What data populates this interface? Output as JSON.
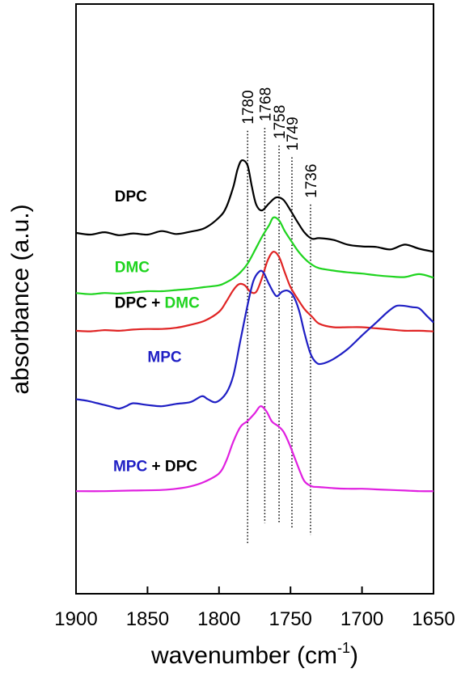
{
  "chart_data": {
    "type": "line",
    "title": "",
    "xlabel": "wavenumber (cm",
    "xlabel_sup": "-1",
    "xlabel_close": ")",
    "ylabel": "absorbance (a.u.)",
    "x_reversed": true,
    "xlim": [
      1900,
      1650
    ],
    "xticks": [
      1900,
      1850,
      1800,
      1750,
      1700,
      1650
    ],
    "xtick_labels": [
      "1900",
      "1850",
      "1800",
      "1750",
      "1700",
      "1650"
    ],
    "yticks": false,
    "grid": false,
    "reference_lines": [
      {
        "x": 1780,
        "label": "1780",
        "y_top": 0.785,
        "y_bottom": 0.085
      },
      {
        "x": 1768,
        "label": "1768",
        "y_top": 0.79,
        "y_bottom": 0.12
      },
      {
        "x": 1758,
        "label": "1758",
        "y_top": 0.76,
        "y_bottom": 0.12
      },
      {
        "x": 1749,
        "label": "1749",
        "y_top": 0.74,
        "y_bottom": 0.11
      },
      {
        "x": 1736,
        "label": "1736",
        "y_top": 0.66,
        "y_bottom": 0.1
      }
    ],
    "series": [
      {
        "name": "DPC",
        "label_parts": [
          {
            "text": "DPC",
            "color": "#000000"
          }
        ],
        "color": "#000000",
        "label_pos": [
          1873,
          0.665
        ],
        "x": [
          1900,
          1890,
          1880,
          1870,
          1860,
          1850,
          1840,
          1830,
          1820,
          1810,
          1800,
          1795,
          1790,
          1787,
          1784,
          1780,
          1777,
          1774,
          1770,
          1765,
          1760,
          1755,
          1750,
          1745,
          1740,
          1735,
          1730,
          1720,
          1710,
          1700,
          1690,
          1680,
          1670,
          1660,
          1650
        ],
        "y": [
          0.612,
          0.609,
          0.613,
          0.608,
          0.611,
          0.609,
          0.615,
          0.61,
          0.614,
          0.62,
          0.638,
          0.655,
          0.69,
          0.72,
          0.735,
          0.726,
          0.69,
          0.66,
          0.65,
          0.662,
          0.672,
          0.668,
          0.65,
          0.63,
          0.612,
          0.602,
          0.603,
          0.6,
          0.592,
          0.589,
          0.588,
          0.584,
          0.592,
          0.585,
          0.58
        ]
      },
      {
        "name": "DMC",
        "label_parts": [
          {
            "text": "DMC",
            "color": "#1fd41f"
          }
        ],
        "color": "#1fd41f",
        "label_pos": [
          1873,
          0.545
        ],
        "x": [
          1900,
          1890,
          1880,
          1870,
          1860,
          1850,
          1840,
          1830,
          1820,
          1810,
          1800,
          1795,
          1790,
          1785,
          1780,
          1775,
          1770,
          1765,
          1762,
          1758,
          1754,
          1750,
          1745,
          1740,
          1735,
          1730,
          1720,
          1710,
          1700,
          1690,
          1680,
          1670,
          1660,
          1650
        ],
        "y": [
          0.51,
          0.508,
          0.51,
          0.509,
          0.511,
          0.513,
          0.513,
          0.515,
          0.517,
          0.52,
          0.523,
          0.528,
          0.535,
          0.545,
          0.56,
          0.582,
          0.605,
          0.625,
          0.638,
          0.633,
          0.615,
          0.6,
          0.582,
          0.568,
          0.558,
          0.552,
          0.548,
          0.545,
          0.543,
          0.54,
          0.538,
          0.537,
          0.542,
          0.536
        ]
      },
      {
        "name": "DPC + DMC",
        "label_parts": [
          {
            "text": "DPC",
            "color": "#000000"
          },
          {
            "text": " + ",
            "color": "#000000"
          },
          {
            "text": "DMC",
            "color": "#1fd41f"
          }
        ],
        "color": "#e02424",
        "label_pos": [
          1873,
          0.485
        ],
        "x": [
          1900,
          1890,
          1880,
          1870,
          1860,
          1850,
          1840,
          1830,
          1820,
          1810,
          1800,
          1795,
          1790,
          1786,
          1782,
          1778,
          1774,
          1770,
          1766,
          1762,
          1758,
          1754,
          1750,
          1745,
          1740,
          1735,
          1730,
          1720,
          1710,
          1700,
          1690,
          1680,
          1670,
          1660,
          1650
        ],
        "y": [
          0.446,
          0.445,
          0.447,
          0.446,
          0.448,
          0.449,
          0.449,
          0.451,
          0.456,
          0.463,
          0.478,
          0.495,
          0.515,
          0.525,
          0.523,
          0.512,
          0.512,
          0.535,
          0.565,
          0.58,
          0.571,
          0.545,
          0.52,
          0.5,
          0.482,
          0.47,
          0.458,
          0.452,
          0.452,
          0.452,
          0.45,
          0.448,
          0.446,
          0.446,
          0.445
        ]
      },
      {
        "name": "MPC",
        "label_parts": [
          {
            "text": "MPC",
            "color": "#1f1fc4"
          }
        ],
        "color": "#1f1fc4",
        "label_pos": [
          1850,
          0.393
        ],
        "x": [
          1900,
          1892,
          1885,
          1880,
          1875,
          1870,
          1865,
          1860,
          1850,
          1840,
          1830,
          1820,
          1812,
          1808,
          1802,
          1795,
          1790,
          1785,
          1780,
          1776,
          1772,
          1769,
          1765,
          1760,
          1756,
          1752,
          1748,
          1744,
          1740,
          1736,
          1732,
          1728,
          1720,
          1710,
          1700,
          1690,
          1682,
          1676,
          1670,
          1665,
          1660,
          1655,
          1650
        ],
        "y": [
          0.33,
          0.327,
          0.323,
          0.32,
          0.317,
          0.314,
          0.318,
          0.323,
          0.32,
          0.318,
          0.322,
          0.325,
          0.335,
          0.33,
          0.325,
          0.34,
          0.37,
          0.43,
          0.49,
          0.53,
          0.546,
          0.545,
          0.525,
          0.505,
          0.512,
          0.514,
          0.505,
          0.48,
          0.44,
          0.407,
          0.392,
          0.39,
          0.398,
          0.415,
          0.438,
          0.46,
          0.478,
          0.488,
          0.488,
          0.486,
          0.484,
          0.472,
          0.46
        ]
      },
      {
        "name": "MPC + DPC",
        "label_parts": [
          {
            "text": "MPC",
            "color": "#1f1fc4"
          },
          {
            "text": " + ",
            "color": "#000000"
          },
          {
            "text": "DPC",
            "color": "#000000"
          }
        ],
        "color": "#e020e0",
        "label_pos": [
          1874,
          0.208
        ],
        "x": [
          1900,
          1880,
          1860,
          1840,
          1830,
          1820,
          1810,
          1800,
          1795,
          1790,
          1785,
          1780,
          1775,
          1771,
          1767,
          1763,
          1759,
          1755,
          1751,
          1747,
          1743,
          1740,
          1735,
          1730,
          1720,
          1710,
          1700,
          1690,
          1680,
          1670,
          1660,
          1650
        ],
        "y": [
          0.174,
          0.174,
          0.175,
          0.176,
          0.178,
          0.182,
          0.19,
          0.204,
          0.225,
          0.258,
          0.283,
          0.293,
          0.306,
          0.318,
          0.31,
          0.292,
          0.285,
          0.275,
          0.255,
          0.23,
          0.205,
          0.19,
          0.182,
          0.181,
          0.179,
          0.178,
          0.178,
          0.177,
          0.176,
          0.175,
          0.174,
          0.174
        ]
      }
    ]
  }
}
